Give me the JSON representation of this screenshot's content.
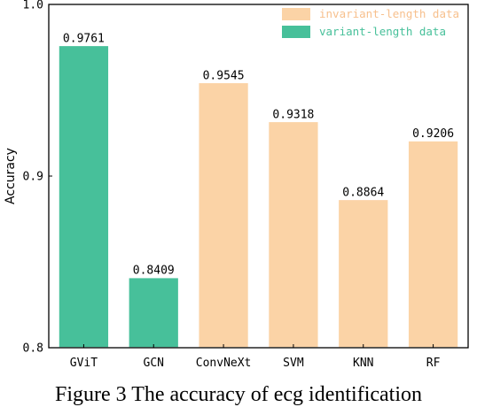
{
  "chart_data": {
    "type": "bar",
    "title": "",
    "xlabel": "",
    "ylabel": "Accuracy",
    "ylim": [
      0.8,
      1.0
    ],
    "yticks": [
      0.8,
      0.9,
      1.0
    ],
    "ytick_labels": [
      "0.8",
      "0.9",
      "1.0"
    ],
    "grid": false,
    "legend_position": "top-right",
    "categories": [
      "GViT",
      "GCN",
      "ConvNeXt",
      "SVM",
      "KNN",
      "RF"
    ],
    "values": [
      0.9761,
      0.8409,
      0.9545,
      0.9318,
      0.8864,
      0.9206
    ],
    "value_labels": [
      "0.9761",
      "0.8409",
      "0.9545",
      "0.9318",
      "0.8864",
      "0.9206"
    ],
    "bar_series": [
      "variant-length data",
      "variant-length data",
      "invariant-length data",
      "invariant-length data",
      "invariant-length data",
      "invariant-length data"
    ],
    "legend": [
      {
        "name": "invariant-length data",
        "color": "#fbd3a6",
        "text_color": "#f7c08d"
      },
      {
        "name": "variant-length data",
        "color": "#47c09a",
        "text_color": "#47c09a"
      }
    ]
  },
  "caption": "Figure 3 The accuracy of ecg identification"
}
